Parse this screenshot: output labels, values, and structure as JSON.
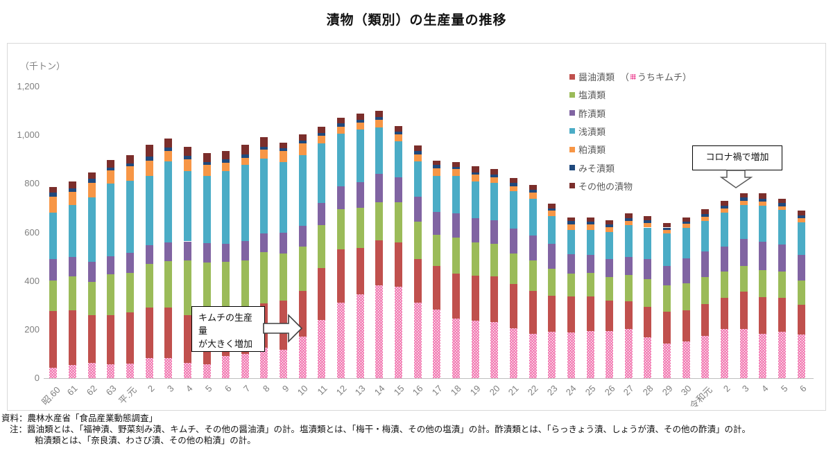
{
  "title": "漬物（類別）の生産量の推移",
  "y_axis": {
    "unit": "（千トン）",
    "ticks": [
      {
        "value": 1200,
        "label": "1,200"
      },
      {
        "value": 1000,
        "label": "1,000"
      },
      {
        "value": 800,
        "label": "800"
      },
      {
        "value": 600,
        "label": "600"
      },
      {
        "value": 400,
        "label": "400"
      },
      {
        "value": 200,
        "label": "200"
      },
      {
        "value": 0,
        "label": "0"
      }
    ]
  },
  "legend": {
    "kimchi_open": "（",
    "kimchi_label": "うちキムチ）",
    "items": [
      {
        "label": "醤油漬類",
        "color": "#C0504D"
      },
      {
        "label": "塩漬類",
        "color": "#9BBB59"
      },
      {
        "label": "酢漬類",
        "color": "#8064A2"
      },
      {
        "label": "浅漬類",
        "color": "#4BACC6"
      },
      {
        "label": "粕漬類",
        "color": "#F79646"
      },
      {
        "label": "みそ漬類",
        "color": "#1F497D"
      },
      {
        "label": "その他の漬物",
        "color": "#7B2E2B"
      }
    ]
  },
  "annotations": {
    "kimchi": {
      "line1": "キムチの生産量",
      "line2": "が大きく増加"
    },
    "corona": {
      "text": "コロナ禍で増加"
    }
  },
  "footer": {
    "source": "資料：農林水産省「食品産業動態調査」",
    "note1": "注：醤油類とは、「福神漬、野菜刻み漬、キムチ、その他の醤油漬」の計。塩漬類とは、「梅干・梅漬、その他の塩漬」の計。酢漬類とは、「らっきょう漬、しょうが漬、その他の酢漬」の計。",
    "note2": "粕漬類とは、「奈良漬、わさび漬、その他の粕漬」の計。"
  },
  "chart_data": {
    "type": "bar",
    "stacked": true,
    "title": "漬物（類別）の生産量の推移",
    "ylabel": "千トン",
    "ylim": [
      0,
      1200
    ],
    "grid": false,
    "legend_position": "top-right-inside",
    "categories": [
      "昭.60",
      "61",
      "62",
      "63",
      "平.元",
      "2",
      "3",
      "4",
      "5",
      "6",
      "7",
      "8",
      "9",
      "10",
      "11",
      "12",
      "13",
      "14",
      "15",
      "16",
      "17",
      "18",
      "19",
      "20",
      "21",
      "22",
      "23",
      "24",
      "25",
      "26",
      "27",
      "28",
      "29",
      "30",
      "令和元",
      "2",
      "3",
      "4",
      "5",
      "6"
    ],
    "series": [
      {
        "name": "醤油漬類",
        "color": "#C0504D",
        "values": [
          276,
          280,
          259,
          259,
          271,
          290,
          290,
          259,
          242,
          242,
          252,
          307,
          320,
          358,
          453,
          529,
          535,
          567,
          558,
          489,
          463,
          430,
          421,
          418,
          387,
          358,
          339,
          335,
          335,
          318,
          316,
          294,
          273,
          280,
          306,
          331,
          356,
          334,
          331,
          302
        ]
      },
      {
        "name": "塩漬類",
        "color": "#9BBB59",
        "values": [
          126,
          138,
          137,
          168,
          163,
          180,
          192,
          225,
          233,
          236,
          232,
          211,
          193,
          183,
          177,
          167,
          165,
          158,
          167,
          154,
          126,
          149,
          137,
          136,
          126,
          127,
          112,
          95,
          99,
          97,
          109,
          114,
          110,
          111,
          110,
          108,
          105,
          111,
          108,
          99
        ]
      },
      {
        "name": "酢漬類",
        "color": "#8064A2",
        "values": [
          89,
          81,
          84,
          76,
          82,
          78,
          78,
          79,
          81,
          76,
          81,
          78,
          86,
          86,
          92,
          93,
          108,
          116,
          102,
          103,
          95,
          100,
          100,
          97,
          102,
          101,
          102,
          80,
          74,
          76,
          74,
          83,
          80,
          101,
          105,
          104,
          111,
          117,
          110,
          107
        ]
      },
      {
        "name": "浅漬類",
        "color": "#4BACC6",
        "values": [
          190,
          214,
          264,
          297,
          296,
          285,
          331,
          290,
          275,
          298,
          312,
          307,
          291,
          292,
          244,
          218,
          215,
          192,
          149,
          147,
          149,
          152,
          152,
          154,
          154,
          152,
          114,
          101,
          103,
          110,
          131,
          129,
          133,
          127,
          127,
          139,
          142,
          149,
          143,
          133
        ]
      },
      {
        "name": "粕漬類",
        "color": "#F79646",
        "values": [
          65,
          54,
          61,
          55,
          59,
          63,
          45,
          48,
          46,
          34,
          30,
          37,
          46,
          47,
          31,
          28,
          29,
          31,
          26,
          28,
          31,
          29,
          29,
          21,
          22,
          25,
          22,
          23,
          21,
          21,
          16,
          19,
          15,
          16,
          17,
          16,
          17,
          16,
          16,
          17
        ]
      },
      {
        "name": "みそ漬類",
        "color": "#1F497D",
        "values": [
          19,
          15,
          15,
          12,
          14,
          16,
          14,
          14,
          13,
          14,
          14,
          13,
          11,
          12,
          13,
          13,
          12,
          12,
          12,
          13,
          13,
          9,
          9,
          13,
          12,
          11,
          9,
          12,
          11,
          10,
          12,
          10,
          9,
          9,
          11,
          13,
          12,
          12,
          12,
          12
        ]
      },
      {
        "name": "その他の漬物",
        "color": "#7B2E2B",
        "values": [
          21,
          27,
          26,
          31,
          34,
          49,
          35,
          38,
          36,
          36,
          41,
          40,
          22,
          26,
          26,
          23,
          24,
          23,
          24,
          23,
          19,
          21,
          23,
          23,
          21,
          21,
          21,
          16,
          19,
          17,
          21,
          19,
          19,
          16,
          19,
          18,
          19,
          21,
          19,
          19
        ]
      }
    ],
    "overlay_series": {
      "name": "うちキムチ",
      "color": "#EF60A3",
      "pattern": "white-dots",
      "subset_of": "醤油漬類",
      "values": [
        43,
        55,
        62,
        57,
        60,
        83,
        83,
        62,
        57,
        90,
        100,
        125,
        117,
        171,
        239,
        311,
        345,
        383,
        377,
        311,
        282,
        244,
        237,
        231,
        206,
        183,
        190,
        187,
        193,
        193,
        202,
        168,
        142,
        150,
        173,
        201,
        201,
        182,
        190,
        179
      ]
    }
  }
}
